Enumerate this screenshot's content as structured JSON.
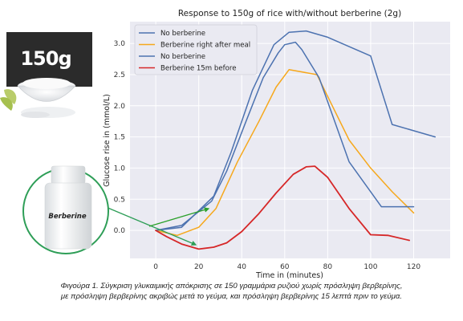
{
  "chart_data": {
    "type": "line",
    "title": "Response to 150g of rice with/without berberine (2g)",
    "xlabel": "Time in (minutes)",
    "ylabel": "Glucose rise in (mmol/L)",
    "xlim": [
      -12,
      137
    ],
    "ylim": [
      -0.45,
      3.35
    ],
    "x_ticks": [
      "0",
      "20",
      "40",
      "60",
      "80",
      "100",
      "120"
    ],
    "x_tick_values": [
      0,
      20,
      40,
      60,
      80,
      100,
      120
    ],
    "y_ticks": [
      "0.0",
      "0.5",
      "1.0",
      "1.5",
      "2.0",
      "2.5",
      "3.0"
    ],
    "y_tick_values": [
      0.0,
      0.5,
      1.0,
      1.5,
      2.0,
      2.5,
      3.0
    ],
    "grid": true,
    "background": "#eaeaf2",
    "legend_position": "top-left",
    "series": [
      {
        "name": "No berberine",
        "color": "#4c72b0",
        "x": [
          0,
          12,
          27,
          35,
          45,
          55,
          62,
          70,
          80,
          90,
          100,
          110,
          120,
          130
        ],
        "y": [
          0.0,
          0.05,
          0.55,
          1.25,
          2.25,
          2.98,
          3.18,
          3.2,
          3.1,
          2.95,
          2.8,
          1.7,
          1.6,
          1.5
        ]
      },
      {
        "name": "Berberine right after meal",
        "color": "#f6a81c",
        "x": [
          0,
          10,
          20,
          28,
          38,
          48,
          56,
          62,
          75,
          90,
          100,
          110,
          120
        ],
        "y": [
          0.0,
          -0.08,
          0.05,
          0.35,
          1.1,
          1.75,
          2.3,
          2.58,
          2.5,
          1.45,
          1.0,
          0.62,
          0.28
        ]
      },
      {
        "name": "No berberine",
        "color": "#4c72b0",
        "x": [
          0,
          12,
          26,
          33,
          42,
          50,
          57,
          60,
          65,
          68,
          76,
          90,
          105,
          120
        ],
        "y": [
          0.0,
          0.08,
          0.47,
          0.95,
          1.75,
          2.45,
          2.85,
          2.98,
          3.02,
          2.9,
          2.45,
          1.1,
          0.38,
          0.38
        ]
      },
      {
        "name": "Berberine 15m before",
        "color": "#d62728",
        "x": [
          0,
          5,
          12,
          20,
          27,
          33,
          40,
          48,
          56,
          64,
          70,
          74,
          80,
          90,
          100,
          108,
          118
        ],
        "y": [
          0.0,
          -0.1,
          -0.22,
          -0.3,
          -0.27,
          -0.2,
          -0.02,
          0.27,
          0.6,
          0.9,
          1.02,
          1.03,
          0.85,
          0.35,
          -0.07,
          -0.08,
          -0.16
        ]
      }
    ]
  },
  "annotations": {
    "badge_text": "150g",
    "bottle_label": "Berberine",
    "arrow_color": "#2e9e57",
    "green_arrow_color": "#2aa02a"
  },
  "caption": {
    "line1": "Φιγούρα 1. Σύγκριση γλυκαιμικής απόκρισης σε 150 γραμμάρια ρυζιού χωρίς πρόσληψη βερβερίνης,",
    "line2": "με πρόσληψη βερβερίνης ακριβώς μετά το γεύμα, και πρόσληψη βερβερίνης 15 λεπτά πριν το γεύμα."
  }
}
